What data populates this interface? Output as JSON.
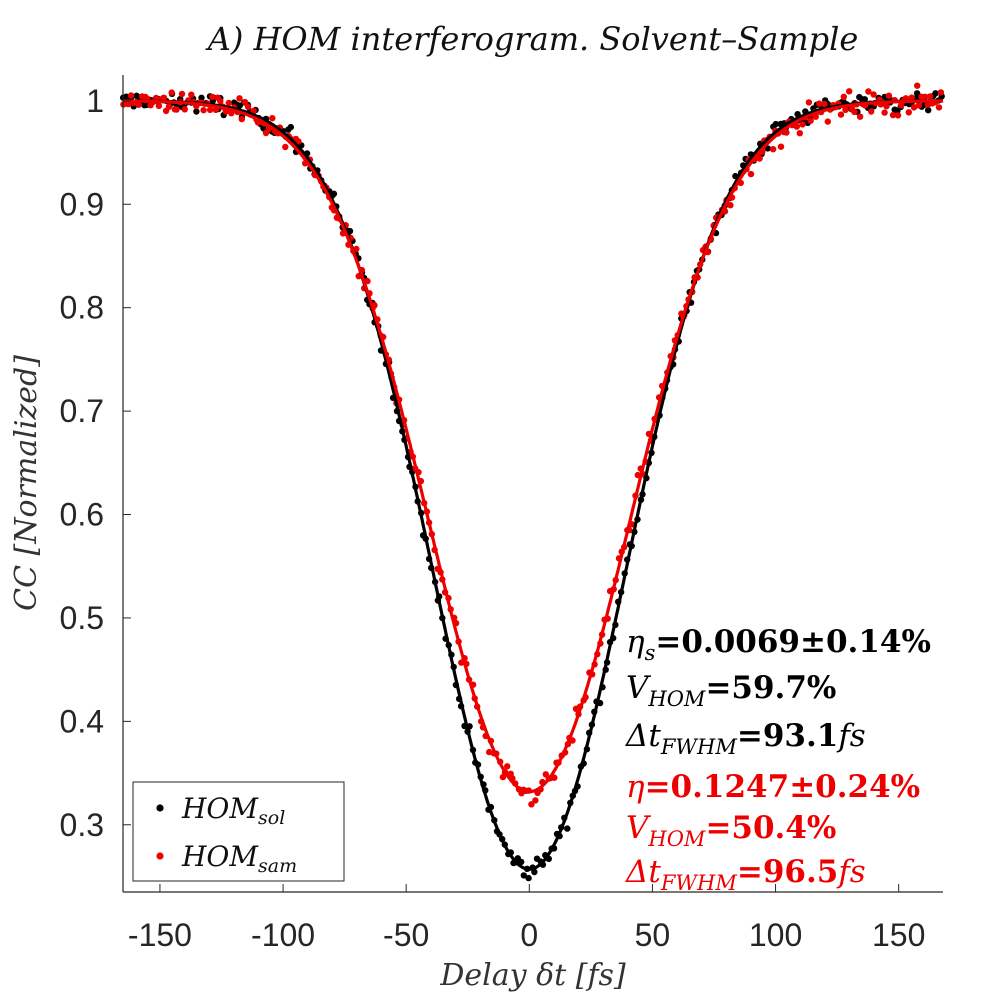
{
  "chart_data": {
    "type": "scatter",
    "title": "A) HOM interferogram. Solvent–Sample",
    "xlabel": "Delay δt [fs]",
    "ylabel": "CC [Normalized]",
    "xlim": [
      -165,
      168
    ],
    "ylim": [
      0.235,
      1.025
    ],
    "xticks": [
      -150,
      -100,
      -50,
      0,
      50,
      100,
      150
    ],
    "xtick_labels": [
      "-150",
      "-100",
      "-50",
      "0",
      "50",
      "100",
      "150"
    ],
    "yticks": [
      0.3,
      0.4,
      0.5,
      0.6,
      0.7,
      0.8,
      0.9,
      1.0
    ],
    "ytick_labels": [
      "0.3",
      "0.4",
      "0.5",
      "0.6",
      "0.7",
      "0.8",
      "0.9",
      "1"
    ],
    "grid": false,
    "legend_position": "bottom-left",
    "series": [
      {
        "name": "HOM_sol",
        "legend_main": "HOM",
        "legend_sub": "sol",
        "color": "#000000",
        "fit": {
          "model": "gaussian-dip",
          "visibility": 0.743,
          "center": 0,
          "fwhm": 93.1
        },
        "points": {
          "x_start": -165,
          "x_end": 168,
          "step": 1.1,
          "noise": 0.007
        },
        "annotation": [
          {
            "sym": "η",
            "sub": "s",
            "val": "=0.0069±0.14%"
          },
          {
            "sym": "V",
            "sub": "HOM",
            "val": "=59.7%"
          },
          {
            "sym": "Δt",
            "sub": "FWHM",
            "val": "=93.1",
            "unit": "fs"
          }
        ]
      },
      {
        "name": "HOM_sam",
        "legend_main": "HOM",
        "legend_sub": "sam",
        "color": "#ee0000",
        "fit": {
          "model": "gaussian-dip",
          "visibility": 0.668,
          "center": 0,
          "fwhm": 96.5
        },
        "points": {
          "x_start": -165,
          "x_end": 168,
          "step": 1.1,
          "noise": 0.008
        },
        "annotation": [
          {
            "sym": "η",
            "sub": "",
            "val": "=0.1247±0.24%"
          },
          {
            "sym": "V",
            "sub": "HOM",
            "val": "=50.4%"
          },
          {
            "sym": "Δt",
            "sub": "FWHM",
            "val": "=96.5",
            "unit": "fs"
          }
        ]
      }
    ]
  }
}
